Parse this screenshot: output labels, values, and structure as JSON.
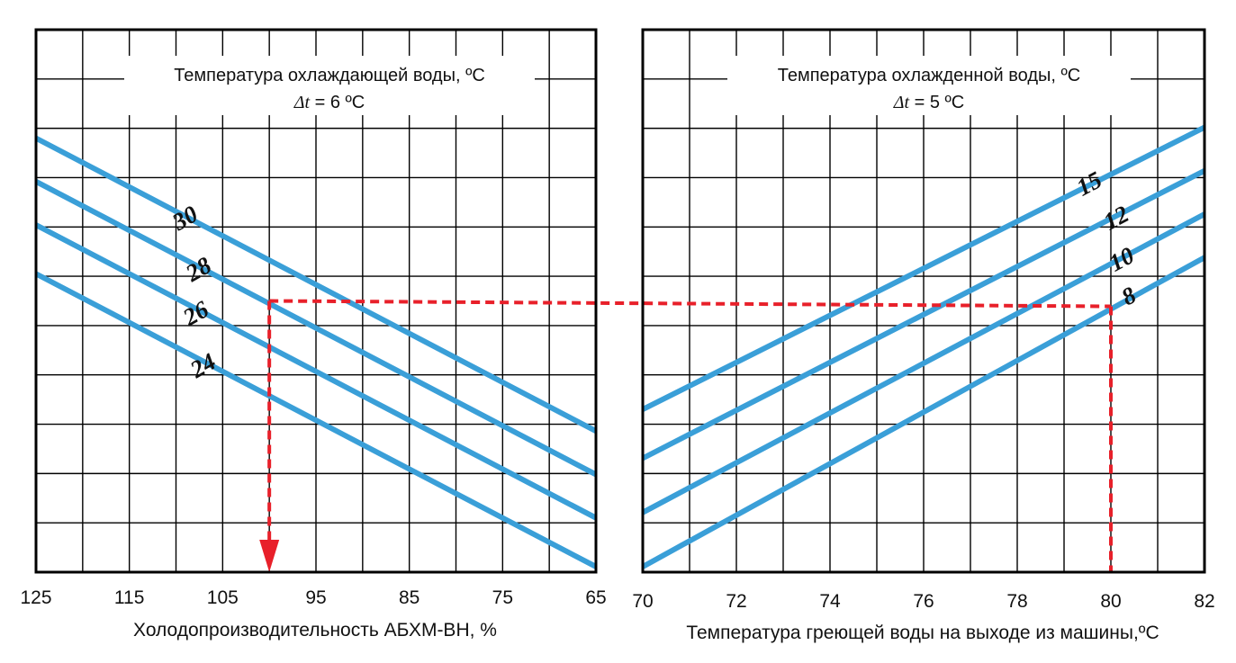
{
  "colors": {
    "series": "#3a9fd8",
    "guide": "#e8202a",
    "grid": "#000000",
    "frame": "#000000"
  },
  "chart_data": [
    {
      "type": "line",
      "title": "Температура охлаждающей воды, ºС",
      "subtitle_var": "Δt",
      "subtitle_rest": " = 6 ºС",
      "xlabel": "Холодопроизводительность АБХМ-ВН, %",
      "ylabel": "",
      "x_ticks": [
        "125",
        "115",
        "105",
        "95",
        "85",
        "75",
        "65"
      ],
      "xlim": [
        125,
        65
      ],
      "ylim": [
        0,
        1
      ],
      "series": [
        {
          "name": "30",
          "x": [
            125,
            65
          ],
          "y": [
            0.8,
            0.26
          ]
        },
        {
          "name": "28",
          "x": [
            125,
            65
          ],
          "y": [
            0.72,
            0.18
          ]
        },
        {
          "name": "26",
          "x": [
            125,
            65
          ],
          "y": [
            0.64,
            0.1
          ]
        },
        {
          "name": "24",
          "x": [
            125,
            65
          ],
          "y": [
            0.55,
            0.01
          ]
        }
      ],
      "guide": {
        "x": [
          100,
          100
        ],
        "y": [
          0.5,
          0.0
        ]
      },
      "grid": true
    },
    {
      "type": "line",
      "title": "Температура охлажденной воды, ºС",
      "subtitle_var": "Δt",
      "subtitle_rest": " = 5 ºС",
      "xlabel": "Температура греющей воды на выходе из машины,ºС",
      "ylabel": "",
      "x_ticks": [
        "70",
        "72",
        "74",
        "76",
        "78",
        "80",
        "82"
      ],
      "xlim": [
        70,
        82
      ],
      "ylim": [
        0,
        1
      ],
      "series": [
        {
          "name": "15",
          "x": [
            70,
            82
          ],
          "y": [
            0.3,
            0.82
          ]
        },
        {
          "name": "12",
          "x": [
            70,
            82
          ],
          "y": [
            0.21,
            0.74
          ]
        },
        {
          "name": "10",
          "x": [
            70,
            82
          ],
          "y": [
            0.11,
            0.66
          ]
        },
        {
          "name": "8",
          "x": [
            70,
            82
          ],
          "y": [
            0.01,
            0.58
          ]
        }
      ],
      "guide": {
        "x": [
          80,
          80
        ],
        "y": [
          0.49,
          0.0
        ]
      },
      "grid": true
    }
  ]
}
